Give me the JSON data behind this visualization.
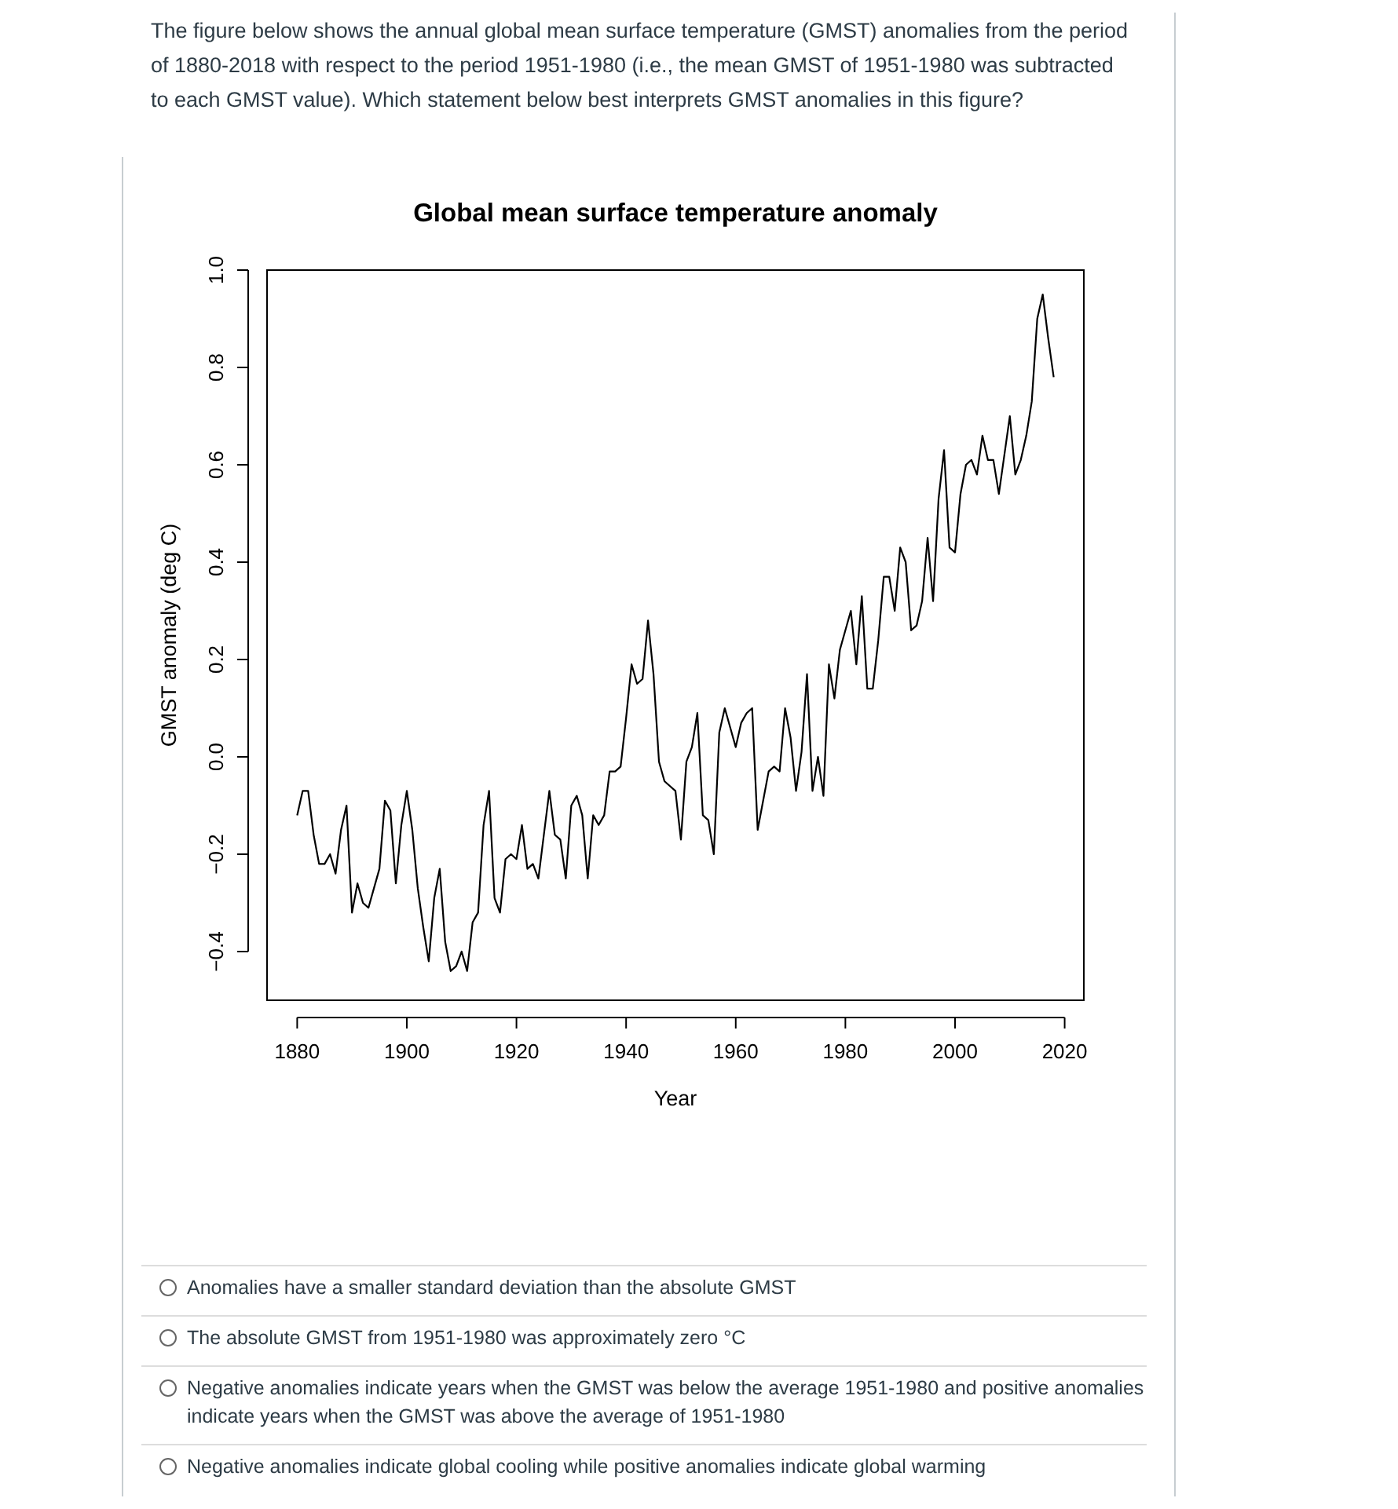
{
  "chart_data": {
    "type": "line",
    "title": "Global mean surface temperature anomaly",
    "xlabel": "Year",
    "ylabel": "GMST anomaly (deg C)",
    "x": [
      1880,
      1881,
      1882,
      1883,
      1884,
      1885,
      1886,
      1887,
      1888,
      1889,
      1890,
      1891,
      1892,
      1893,
      1894,
      1895,
      1896,
      1897,
      1898,
      1899,
      1900,
      1901,
      1902,
      1903,
      1904,
      1905,
      1906,
      1907,
      1908,
      1909,
      1910,
      1911,
      1912,
      1913,
      1914,
      1915,
      1916,
      1917,
      1918,
      1919,
      1920,
      1921,
      1922,
      1923,
      1924,
      1925,
      1926,
      1927,
      1928,
      1929,
      1930,
      1931,
      1932,
      1933,
      1934,
      1935,
      1936,
      1937,
      1938,
      1939,
      1940,
      1941,
      1942,
      1943,
      1944,
      1945,
      1946,
      1947,
      1948,
      1949,
      1950,
      1951,
      1952,
      1953,
      1954,
      1955,
      1956,
      1957,
      1958,
      1959,
      1960,
      1961,
      1962,
      1963,
      1964,
      1965,
      1966,
      1967,
      1968,
      1969,
      1970,
      1971,
      1972,
      1973,
      1974,
      1975,
      1976,
      1977,
      1978,
      1979,
      1980,
      1981,
      1982,
      1983,
      1984,
      1985,
      1986,
      1987,
      1988,
      1989,
      1990,
      1991,
      1992,
      1993,
      1994,
      1995,
      1996,
      1997,
      1998,
      1999,
      2000,
      2001,
      2002,
      2003,
      2004,
      2005,
      2006,
      2007,
      2008,
      2009,
      2010,
      2011,
      2012,
      2013,
      2014,
      2015,
      2016,
      2017,
      2018
    ],
    "series": [
      {
        "color": "#000000",
        "values": [
          -0.12,
          -0.07,
          -0.07,
          -0.16,
          -0.22,
          -0.22,
          -0.2,
          -0.24,
          -0.15,
          -0.1,
          -0.32,
          -0.26,
          -0.3,
          -0.31,
          -0.27,
          -0.23,
          -0.09,
          -0.11,
          -0.26,
          -0.14,
          -0.07,
          -0.15,
          -0.27,
          -0.35,
          -0.42,
          -0.29,
          -0.23,
          -0.38,
          -0.44,
          -0.43,
          -0.4,
          -0.44,
          -0.34,
          -0.32,
          -0.14,
          -0.07,
          -0.29,
          -0.32,
          -0.21,
          -0.2,
          -0.21,
          -0.14,
          -0.23,
          -0.22,
          -0.25,
          -0.16,
          -0.07,
          -0.16,
          -0.17,
          -0.25,
          -0.1,
          -0.08,
          -0.12,
          -0.25,
          -0.12,
          -0.14,
          -0.12,
          -0.03,
          -0.03,
          -0.02,
          0.08,
          0.19,
          0.15,
          0.16,
          0.28,
          0.17,
          -0.01,
          -0.05,
          -0.06,
          -0.07,
          -0.17,
          -0.01,
          0.02,
          0.09,
          -0.12,
          -0.13,
          -0.2,
          0.05,
          0.1,
          0.06,
          0.02,
          0.07,
          0.09,
          0.1,
          -0.15,
          -0.09,
          -0.03,
          -0.02,
          -0.03,
          0.1,
          0.04,
          -0.07,
          0.01,
          0.17,
          -0.07,
          0,
          -0.08,
          0.19,
          0.12,
          0.22,
          0.26,
          0.3,
          0.19,
          0.33,
          0.14,
          0.14,
          0.24,
          0.37,
          0.37,
          0.3,
          0.43,
          0.4,
          0.26,
          0.27,
          0.32,
          0.45,
          0.32,
          0.53,
          0.63,
          0.43,
          0.42,
          0.54,
          0.6,
          0.61,
          0.58,
          0.66,
          0.61,
          0.61,
          0.54,
          0.62,
          0.7,
          0.58,
          0.61,
          0.66,
          0.73,
          0.9,
          0.95,
          0.86,
          0.78
        ]
      }
    ],
    "xlim": [
      1874.5,
      2023.5
    ],
    "ylim": [
      -0.5,
      1.0
    ],
    "xticks": [
      1880,
      1900,
      1920,
      1940,
      1960,
      1980,
      2000,
      2020
    ],
    "yticks": [
      {
        "value": -0.4,
        "label": "−0.4"
      },
      {
        "value": -0.2,
        "label": "−0.2"
      },
      {
        "value": 0,
        "label": "0.0"
      },
      0.2,
      0.4,
      0.6,
      0.8,
      {
        "value": 1,
        "label": "1.0"
      }
    ],
    "grid": false,
    "marker": "none",
    "line_style": "solid",
    "annotations": [
      "The figure below shows the annual global mean surface temperature (GMST) anomalies from the period of 1880-2018 with respect to the period 1951-1980 (i.e., the mean GMST of 1951-1980 was subtracted to each GMST value). Which statement below best interprets GMST anomalies in this figure?",
      "Anomalies have a smaller standard deviation than the absolute GMST",
      "The absolute GMST from 1951-1980 was approximately zero °C",
      "Negative anomalies indicate years when the GMST was below the average 1951-1980 and positive anomalies indicate years when the GMST was above the average of 1951-1980",
      "Negative anomalies indicate global cooling while positive anomalies indicate global warming"
    ]
  }
}
